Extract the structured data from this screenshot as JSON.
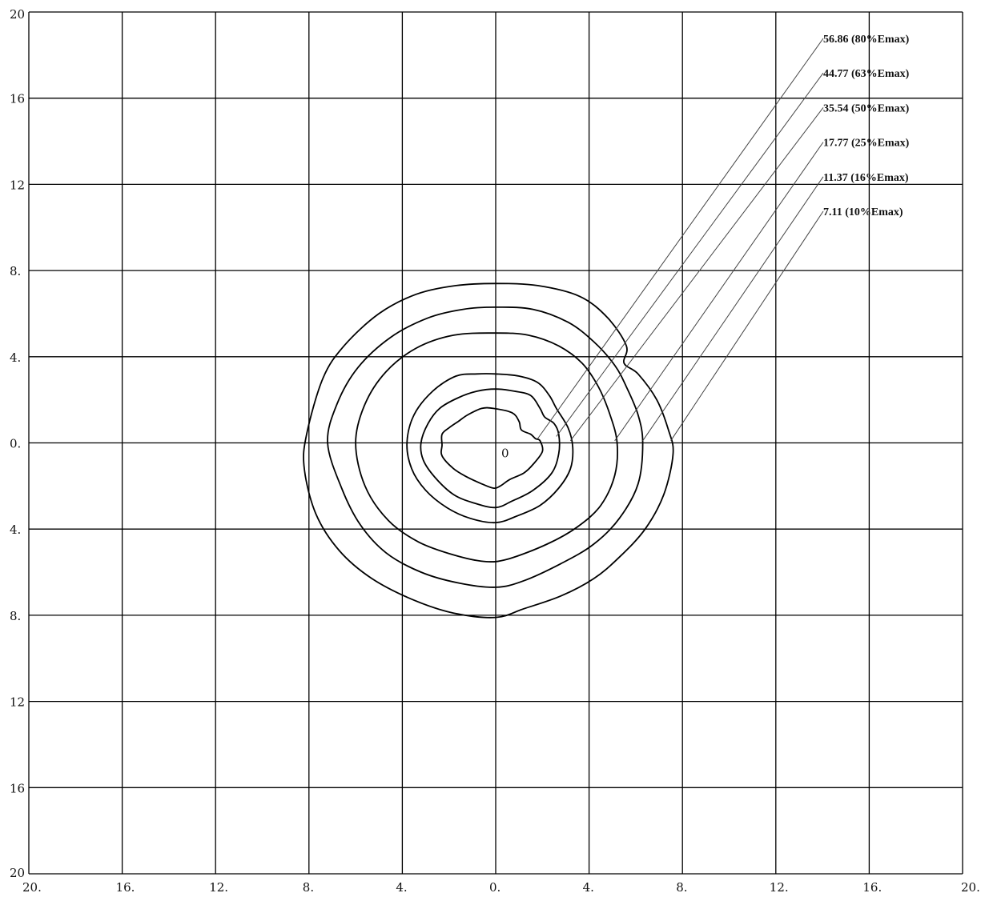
{
  "chart_data": {
    "type": "contour",
    "title": "",
    "xlabel": "",
    "ylabel": "",
    "xlim": [
      -20,
      20
    ],
    "ylim": [
      -20,
      20
    ],
    "grid": true,
    "x_tick_labels": [
      "20.",
      "16.",
      "12.",
      "8.",
      "4.",
      "0.",
      "4.",
      "8.",
      "12.",
      "16.",
      "20."
    ],
    "y_tick_labels": [
      "20",
      "16",
      "12",
      "8.",
      "4.",
      "0.",
      "4.",
      "8.",
      "12",
      "16",
      "20"
    ],
    "origin_label": "0",
    "legend_placement": "top-right",
    "contours": [
      {
        "label": "56.86  (80%Emax)",
        "points": [
          [
            -0.1,
            1.6
          ],
          [
            0.7,
            1.4
          ],
          [
            1.0,
            1.0
          ],
          [
            1.1,
            0.6
          ],
          [
            1.5,
            0.4
          ],
          [
            1.7,
            0.2
          ],
          [
            1.9,
            0.1
          ],
          [
            2.0,
            -0.4
          ],
          [
            1.6,
            -1.0
          ],
          [
            1.2,
            -1.4
          ],
          [
            0.6,
            -1.7
          ],
          [
            0.2,
            -2.0
          ],
          [
            -0.1,
            -2.1
          ],
          [
            -0.6,
            -1.9
          ],
          [
            -1.2,
            -1.6
          ],
          [
            -1.8,
            -1.2
          ],
          [
            -2.3,
            -0.6
          ],
          [
            -2.3,
            -0.1
          ],
          [
            -2.3,
            0.4
          ],
          [
            -2.0,
            0.7
          ],
          [
            -1.6,
            1.0
          ],
          [
            -1.2,
            1.3
          ],
          [
            -0.6,
            1.6
          ]
        ],
        "leader_from": [
          1.8,
          0.2
        ]
      },
      {
        "label": "44.77  (63%Emax)",
        "points": [
          [
            0,
            2.5
          ],
          [
            0.8,
            2.4
          ],
          [
            1.5,
            2.2
          ],
          [
            1.9,
            1.6
          ],
          [
            2.1,
            1.2
          ],
          [
            2.5,
            0.9
          ],
          [
            2.7,
            0.4
          ],
          [
            2.7,
            -0.5
          ],
          [
            2.4,
            -1.4
          ],
          [
            1.6,
            -2.2
          ],
          [
            0.7,
            -2.7
          ],
          [
            0,
            -3.0
          ],
          [
            -0.9,
            -2.8
          ],
          [
            -1.8,
            -2.4
          ],
          [
            -2.6,
            -1.6
          ],
          [
            -3.1,
            -0.8
          ],
          [
            -3.2,
            0
          ],
          [
            -2.9,
            0.9
          ],
          [
            -2.4,
            1.6
          ],
          [
            -1.6,
            2.1
          ],
          [
            -0.8,
            2.4
          ]
        ],
        "leader_from": [
          2.6,
          0.3
        ]
      },
      {
        "label": "35.54  (50%Emax)",
        "points": [
          [
            0,
            3.2
          ],
          [
            1.0,
            3.1
          ],
          [
            1.8,
            2.8
          ],
          [
            2.3,
            2.2
          ],
          [
            2.6,
            1.6
          ],
          [
            3.1,
            0.7
          ],
          [
            3.3,
            -0.2
          ],
          [
            3.2,
            -1.2
          ],
          [
            2.7,
            -2.1
          ],
          [
            1.9,
            -2.9
          ],
          [
            0.9,
            -3.4
          ],
          [
            0,
            -3.7
          ],
          [
            -1.1,
            -3.5
          ],
          [
            -2.1,
            -3.0
          ],
          [
            -3.0,
            -2.2
          ],
          [
            -3.6,
            -1.2
          ],
          [
            -3.8,
            0
          ],
          [
            -3.5,
            1.3
          ],
          [
            -2.7,
            2.4
          ],
          [
            -1.7,
            3.1
          ],
          [
            -0.8,
            3.2
          ]
        ],
        "leader_from": [
          3.2,
          0.1
        ]
      },
      {
        "label": "17.77  (25%Emax)",
        "points": [
          [
            0,
            5.1
          ],
          [
            1.4,
            5.0
          ],
          [
            2.7,
            4.5
          ],
          [
            3.7,
            3.7
          ],
          [
            4.4,
            2.6
          ],
          [
            4.9,
            1.3
          ],
          [
            5.2,
            0
          ],
          [
            5.1,
            -1.5
          ],
          [
            4.5,
            -2.9
          ],
          [
            3.5,
            -3.9
          ],
          [
            2.2,
            -4.7
          ],
          [
            0.5,
            -5.4
          ],
          [
            -0.5,
            -5.5
          ],
          [
            -1.8,
            -5.2
          ],
          [
            -3.3,
            -4.6
          ],
          [
            -4.6,
            -3.6
          ],
          [
            -5.6,
            -2.0
          ],
          [
            -6.0,
            0
          ],
          [
            -5.6,
            1.8
          ],
          [
            -4.7,
            3.3
          ],
          [
            -3.4,
            4.4
          ],
          [
            -1.8,
            5.0
          ]
        ],
        "leader_from": [
          5.1,
          0.1
        ]
      },
      {
        "label": "11.37  (16%Emax)",
        "points": [
          [
            0,
            6.3
          ],
          [
            1.6,
            6.2
          ],
          [
            3.1,
            5.6
          ],
          [
            4.2,
            4.7
          ],
          [
            5.1,
            3.6
          ],
          [
            5.6,
            2.6
          ],
          [
            6.1,
            1.3
          ],
          [
            6.3,
            0
          ],
          [
            6.1,
            -1.9
          ],
          [
            5.3,
            -3.5
          ],
          [
            4.2,
            -4.7
          ],
          [
            2.8,
            -5.6
          ],
          [
            1.2,
            -6.4
          ],
          [
            0,
            -6.7
          ],
          [
            -1.6,
            -6.5
          ],
          [
            -3.2,
            -6.0
          ],
          [
            -4.7,
            -5.1
          ],
          [
            -5.8,
            -3.8
          ],
          [
            -6.6,
            -2.1
          ],
          [
            -7.2,
            0
          ],
          [
            -6.8,
            1.8
          ],
          [
            -5.9,
            3.5
          ],
          [
            -4.5,
            4.9
          ],
          [
            -2.9,
            5.8
          ],
          [
            -1.4,
            6.2
          ]
        ],
        "leader_from": [
          6.3,
          0.1
        ]
      },
      {
        "label": "7.11  (10%Emax)",
        "points": [
          [
            0,
            7.4
          ],
          [
            1.8,
            7.3
          ],
          [
            3.6,
            6.8
          ],
          [
            4.8,
            5.8
          ],
          [
            5.6,
            4.5
          ],
          [
            5.5,
            3.7
          ],
          [
            6.1,
            3.2
          ],
          [
            6.9,
            2.0
          ],
          [
            7.4,
            0.6
          ],
          [
            7.6,
            -0.5
          ],
          [
            7.2,
            -2.4
          ],
          [
            6.4,
            -4.0
          ],
          [
            5.3,
            -5.3
          ],
          [
            4.2,
            -6.3
          ],
          [
            2.8,
            -7.1
          ],
          [
            1.2,
            -7.7
          ],
          [
            0,
            -8.1
          ],
          [
            -1.8,
            -7.9
          ],
          [
            -3.5,
            -7.3
          ],
          [
            -5.3,
            -6.3
          ],
          [
            -6.7,
            -5.0
          ],
          [
            -7.7,
            -3.3
          ],
          [
            -8.2,
            -1.2
          ],
          [
            -8.1,
            0.4
          ],
          [
            -7.4,
            3.0
          ],
          [
            -6.5,
            4.5
          ],
          [
            -5.0,
            6.0
          ],
          [
            -3.4,
            6.9
          ],
          [
            -1.7,
            7.3
          ]
        ],
        "leader_from": [
          7.5,
          0.1
        ]
      }
    ]
  }
}
